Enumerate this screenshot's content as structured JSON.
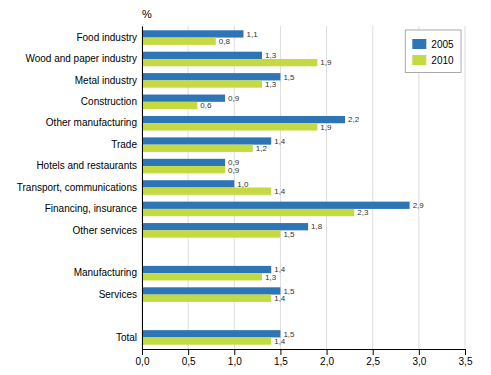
{
  "chart_data": {
    "type": "bar",
    "orientation": "horizontal",
    "xlabel": "%",
    "categories": [
      "Total",
      null,
      "Services",
      "Manufacturing",
      null,
      "Other services",
      "Financing, insurance",
      "Transport, communications",
      "Hotels and restaurants",
      "Trade",
      "Other manufacturing",
      "Construction",
      "Metal industry",
      "Wood and paper industry",
      "Food industry"
    ],
    "series": [
      {
        "name": "2005",
        "color": "#2E75B6",
        "values": [
          1.5,
          null,
          1.5,
          1.4,
          null,
          1.8,
          2.9,
          1.0,
          0.9,
          1.4,
          2.2,
          0.9,
          1.5,
          1.3,
          1.1
        ],
        "value_labels": [
          "1,5",
          null,
          "1,5",
          "1,4",
          null,
          "1,8",
          "2,9",
          "1,0",
          "0,9",
          "1,4",
          "2,2",
          "0,9",
          "1,5",
          "1,3",
          "1,1"
        ]
      },
      {
        "name": "2010",
        "color": "#C5D941",
        "values": [
          1.4,
          null,
          1.4,
          1.3,
          null,
          1.5,
          2.3,
          1.4,
          0.9,
          1.2,
          1.9,
          0.6,
          1.3,
          1.9,
          0.8
        ],
        "value_labels": [
          "1,4",
          null,
          "1,4",
          "1,3",
          null,
          "1,5",
          "2,3",
          "1,4",
          "0,9",
          "1,2",
          "1,9",
          "0,6",
          "1,3",
          "1,9",
          "0,8"
        ]
      }
    ],
    "xlim": [
      0,
      3.5
    ],
    "xticks": [
      {
        "value": 0.0,
        "label": "0,0"
      },
      {
        "value": 0.5,
        "label": "0,5"
      },
      {
        "value": 1.0,
        "label": "1,0"
      },
      {
        "value": 1.5,
        "label": "1,5"
      },
      {
        "value": 2.0,
        "label": "2,0"
      },
      {
        "value": 2.5,
        "label": "2,5"
      },
      {
        "value": 3.0,
        "label": "3,0"
      },
      {
        "value": 3.5,
        "label": "3,5"
      }
    ],
    "grid": true,
    "legend": "upper right",
    "data_labels": true
  }
}
